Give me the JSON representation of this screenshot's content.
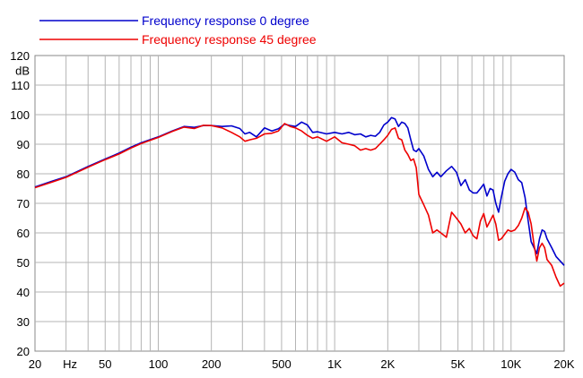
{
  "chart_data": {
    "type": "line",
    "title": "",
    "xlabel": "Hz",
    "ylabel": "dB",
    "x_scale": "log",
    "xlim": [
      20,
      20000
    ],
    "ylim": [
      20,
      120
    ],
    "grid": true,
    "legend_placement": "top-left",
    "x_ticks": [
      {
        "value": 20,
        "label": "20"
      },
      {
        "value": 50,
        "label": "50"
      },
      {
        "value": 100,
        "label": "100"
      },
      {
        "value": 200,
        "label": "200"
      },
      {
        "value": 500,
        "label": "500"
      },
      {
        "value": 1000,
        "label": "1K"
      },
      {
        "value": 2000,
        "label": "2K"
      },
      {
        "value": 5000,
        "label": "5K"
      },
      {
        "value": 10000,
        "label": "10K"
      },
      {
        "value": 20000,
        "label": "20K"
      }
    ],
    "x_unit_label": "Hz",
    "y_ticks": [
      20,
      30,
      40,
      50,
      60,
      70,
      80,
      90,
      100,
      110,
      120
    ],
    "y_unit_label": "dB",
    "series": [
      {
        "name": "Frequency response 0 degree",
        "color": "#0000cc",
        "points": [
          [
            20,
            75.5
          ],
          [
            25,
            77.5
          ],
          [
            30,
            79
          ],
          [
            40,
            82.5
          ],
          [
            50,
            85
          ],
          [
            60,
            87
          ],
          [
            70,
            89
          ],
          [
            80,
            90.5
          ],
          [
            100,
            92.5
          ],
          [
            120,
            94.5
          ],
          [
            140,
            96
          ],
          [
            160,
            95.7
          ],
          [
            180,
            96.3
          ],
          [
            200,
            96.3
          ],
          [
            230,
            96
          ],
          [
            260,
            96.2
          ],
          [
            290,
            95.3
          ],
          [
            310,
            93.5
          ],
          [
            330,
            94
          ],
          [
            360,
            92.5
          ],
          [
            400,
            95.5
          ],
          [
            440,
            94.5
          ],
          [
            480,
            95.2
          ],
          [
            520,
            96.8
          ],
          [
            560,
            96.3
          ],
          [
            600,
            96
          ],
          [
            650,
            97.5
          ],
          [
            700,
            96.5
          ],
          [
            750,
            94
          ],
          [
            800,
            94.2
          ],
          [
            900,
            93.5
          ],
          [
            1000,
            94
          ],
          [
            1100,
            93.5
          ],
          [
            1200,
            94
          ],
          [
            1300,
            93.2
          ],
          [
            1400,
            93.5
          ],
          [
            1500,
            92.5
          ],
          [
            1600,
            93
          ],
          [
            1700,
            92.7
          ],
          [
            1800,
            94
          ],
          [
            1900,
            96.5
          ],
          [
            2000,
            97.5
          ],
          [
            2100,
            99
          ],
          [
            2200,
            98.5
          ],
          [
            2300,
            96
          ],
          [
            2400,
            97.5
          ],
          [
            2500,
            97
          ],
          [
            2600,
            95.5
          ],
          [
            2700,
            91.5
          ],
          [
            2800,
            88
          ],
          [
            2900,
            87.5
          ],
          [
            3000,
            88.5
          ],
          [
            3200,
            86
          ],
          [
            3400,
            81.5
          ],
          [
            3600,
            79
          ],
          [
            3800,
            80.5
          ],
          [
            4000,
            79
          ],
          [
            4300,
            81
          ],
          [
            4600,
            82.5
          ],
          [
            4900,
            80.5
          ],
          [
            5200,
            76
          ],
          [
            5500,
            78
          ],
          [
            5800,
            74.5
          ],
          [
            6100,
            73.5
          ],
          [
            6400,
            73.5
          ],
          [
            6700,
            75
          ],
          [
            7000,
            76.5
          ],
          [
            7300,
            72.5
          ],
          [
            7600,
            75
          ],
          [
            7900,
            74.5
          ],
          [
            8200,
            70
          ],
          [
            8500,
            67
          ],
          [
            8800,
            72
          ],
          [
            9200,
            77.5
          ],
          [
            9600,
            80
          ],
          [
            10000,
            81.5
          ],
          [
            10500,
            80.5
          ],
          [
            11000,
            78
          ],
          [
            11500,
            77
          ],
          [
            12000,
            72
          ],
          [
            12500,
            64
          ],
          [
            13000,
            57
          ],
          [
            13500,
            55
          ],
          [
            14000,
            53
          ],
          [
            14500,
            58
          ],
          [
            15000,
            61
          ],
          [
            15500,
            60.5
          ],
          [
            16000,
            58
          ],
          [
            17000,
            55
          ],
          [
            18000,
            52
          ],
          [
            19000,
            50.5
          ],
          [
            20000,
            49
          ]
        ]
      },
      {
        "name": "Frequency response 45 degree",
        "color": "#ee0000",
        "points": [
          [
            20,
            75.3
          ],
          [
            25,
            77.2
          ],
          [
            30,
            78.8
          ],
          [
            40,
            82.2
          ],
          [
            50,
            84.8
          ],
          [
            60,
            86.7
          ],
          [
            70,
            88.7
          ],
          [
            80,
            90.2
          ],
          [
            100,
            92.3
          ],
          [
            120,
            94.3
          ],
          [
            140,
            95.8
          ],
          [
            160,
            95.3
          ],
          [
            180,
            96.4
          ],
          [
            200,
            96.3
          ],
          [
            230,
            95.5
          ],
          [
            260,
            94
          ],
          [
            290,
            92.5
          ],
          [
            310,
            91
          ],
          [
            330,
            91.5
          ],
          [
            360,
            92
          ],
          [
            400,
            93.5
          ],
          [
            440,
            93.7
          ],
          [
            480,
            94.5
          ],
          [
            520,
            97
          ],
          [
            560,
            96
          ],
          [
            600,
            95.5
          ],
          [
            650,
            94.5
          ],
          [
            700,
            93
          ],
          [
            750,
            92
          ],
          [
            800,
            92.5
          ],
          [
            900,
            91
          ],
          [
            1000,
            92.5
          ],
          [
            1100,
            90.5
          ],
          [
            1200,
            90
          ],
          [
            1300,
            89.5
          ],
          [
            1400,
            88
          ],
          [
            1500,
            88.5
          ],
          [
            1600,
            88
          ],
          [
            1700,
            88.5
          ],
          [
            1800,
            90
          ],
          [
            1900,
            91.5
          ],
          [
            2000,
            93
          ],
          [
            2100,
            95
          ],
          [
            2200,
            95.5
          ],
          [
            2300,
            92
          ],
          [
            2400,
            91.5
          ],
          [
            2500,
            88
          ],
          [
            2600,
            86.5
          ],
          [
            2700,
            84.5
          ],
          [
            2800,
            85
          ],
          [
            2900,
            82
          ],
          [
            3000,
            73
          ],
          [
            3200,
            69.5
          ],
          [
            3400,
            66
          ],
          [
            3600,
            60
          ],
          [
            3800,
            61
          ],
          [
            4000,
            60
          ],
          [
            4300,
            58.5
          ],
          [
            4600,
            67
          ],
          [
            4900,
            65
          ],
          [
            5200,
            63
          ],
          [
            5500,
            60
          ],
          [
            5800,
            61.5
          ],
          [
            6100,
            59
          ],
          [
            6400,
            58
          ],
          [
            6700,
            64
          ],
          [
            7000,
            66.5
          ],
          [
            7300,
            62
          ],
          [
            7600,
            64
          ],
          [
            7900,
            66
          ],
          [
            8200,
            63
          ],
          [
            8500,
            57.5
          ],
          [
            8800,
            58
          ],
          [
            9200,
            59.5
          ],
          [
            9600,
            61
          ],
          [
            10000,
            60.5
          ],
          [
            10500,
            61
          ],
          [
            11000,
            62.5
          ],
          [
            11500,
            65
          ],
          [
            12000,
            68.5
          ],
          [
            12500,
            67
          ],
          [
            13000,
            63
          ],
          [
            13500,
            56
          ],
          [
            14000,
            50.5
          ],
          [
            14500,
            55
          ],
          [
            15000,
            56.5
          ],
          [
            15500,
            55
          ],
          [
            16000,
            51
          ],
          [
            17000,
            49
          ],
          [
            18000,
            45
          ],
          [
            19000,
            42
          ],
          [
            20000,
            43
          ]
        ]
      }
    ]
  }
}
